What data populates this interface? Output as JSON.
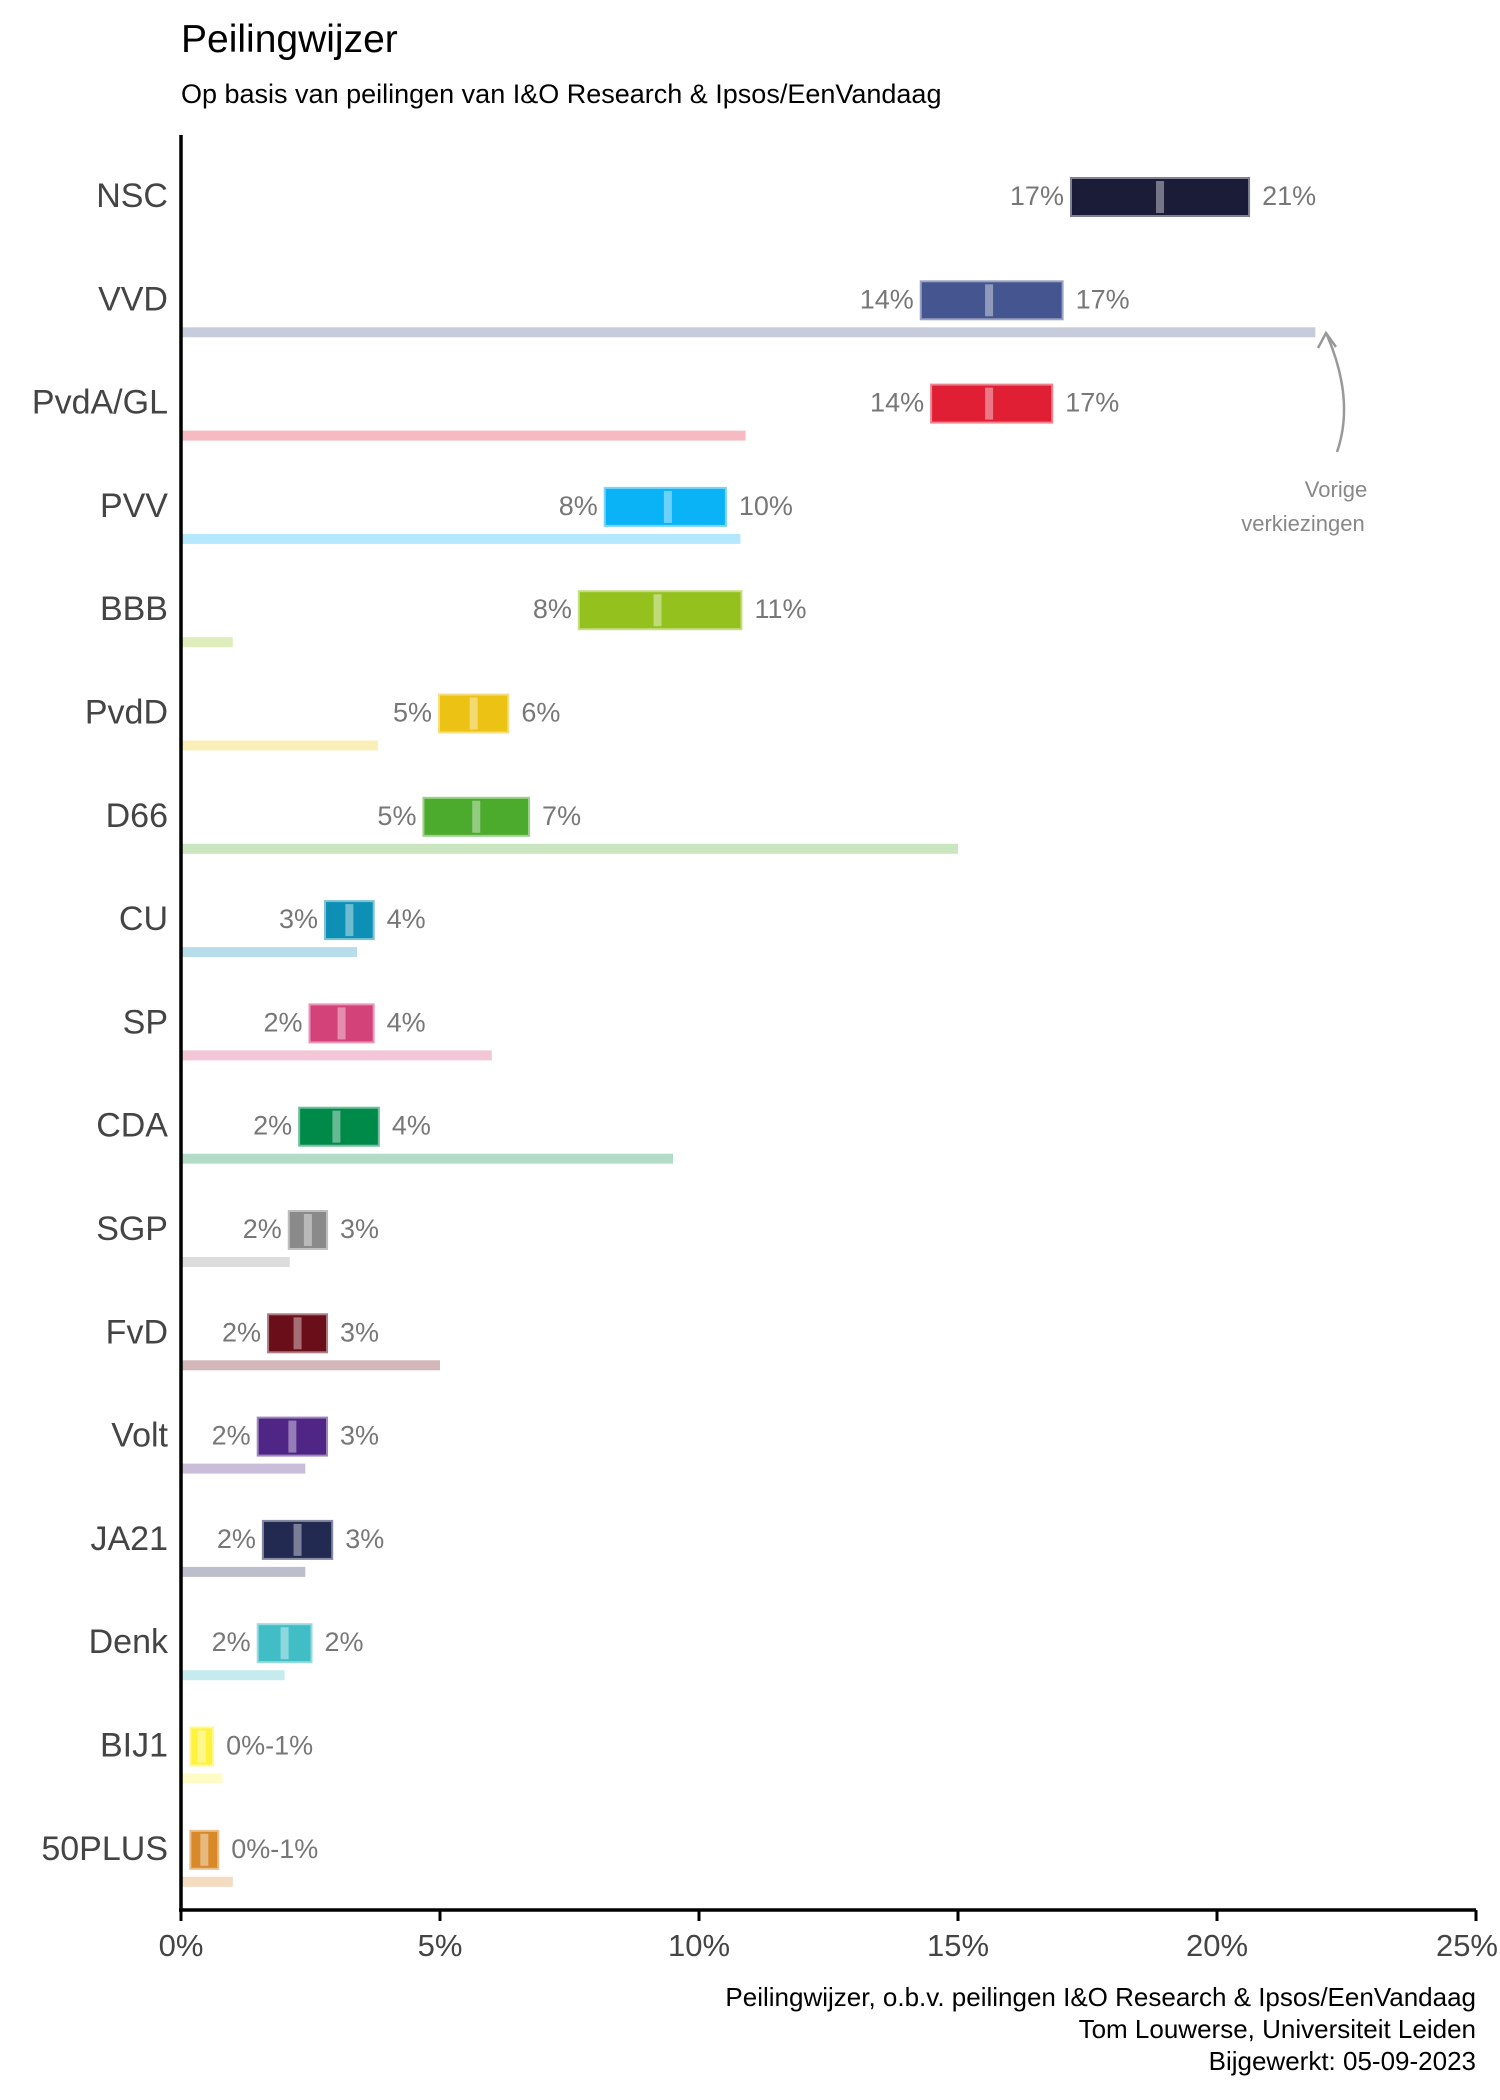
{
  "chart_data": {
    "type": "bar",
    "title": "Peilingwijzer",
    "subtitle": "Op basis van peilingen van I&O Research & Ipsos/EenVandaag",
    "xlim": [
      0,
      25
    ],
    "x_ticks": [
      {
        "value": 0,
        "label": "0%"
      },
      {
        "value": 5,
        "label": "5%"
      },
      {
        "value": 10,
        "label": "10%"
      },
      {
        "value": 15,
        "label": "15%"
      },
      {
        "value": 20,
        "label": "20%"
      },
      {
        "value": 25,
        "label": "25%"
      }
    ],
    "grid": false,
    "parties": [
      {
        "name": "NSC",
        "low": 17.2,
        "high": 20.6,
        "mid": 18.9,
        "previous": 0,
        "color": "#1a1c38",
        "low_label": "17%",
        "high_label": "21%"
      },
      {
        "name": "VVD",
        "low": 14.3,
        "high": 17.0,
        "mid": 15.6,
        "previous": 21.9,
        "color": "#45558f",
        "low_label": "14%",
        "high_label": "17%"
      },
      {
        "name": "PvdA/GL",
        "low": 14.5,
        "high": 16.8,
        "mid": 15.6,
        "previous": 10.9,
        "color": "#e01f34",
        "low_label": "14%",
        "high_label": "17%"
      },
      {
        "name": "PVV",
        "low": 8.2,
        "high": 10.5,
        "mid": 9.4,
        "previous": 10.8,
        "color": "#0ab3f5",
        "low_label": "8%",
        "high_label": "10%"
      },
      {
        "name": "BBB",
        "low": 7.7,
        "high": 10.8,
        "mid": 9.2,
        "previous": 1.0,
        "color": "#94c11e",
        "low_label": "8%",
        "high_label": "11%"
      },
      {
        "name": "PvdD",
        "low": 5.0,
        "high": 6.3,
        "mid": 5.65,
        "previous": 3.8,
        "color": "#ecc314",
        "low_label": "5%",
        "high_label": "6%"
      },
      {
        "name": "D66",
        "low": 4.7,
        "high": 6.7,
        "mid": 5.7,
        "previous": 15.0,
        "color": "#4cab2d",
        "low_label": "5%",
        "high_label": "7%"
      },
      {
        "name": "CU",
        "low": 2.8,
        "high": 3.7,
        "mid": 3.25,
        "previous": 3.4,
        "color": "#0e8fb5",
        "low_label": "3%",
        "high_label": "4%"
      },
      {
        "name": "SP",
        "low": 2.5,
        "high": 3.7,
        "mid": 3.1,
        "previous": 6.0,
        "color": "#d4427a",
        "low_label": "2%",
        "high_label": "4%"
      },
      {
        "name": "CDA",
        "low": 2.3,
        "high": 3.8,
        "mid": 3.0,
        "previous": 9.5,
        "color": "#008a4a",
        "low_label": "2%",
        "high_label": "4%"
      },
      {
        "name": "SGP",
        "low": 2.1,
        "high": 2.8,
        "mid": 2.45,
        "previous": 2.1,
        "color": "#8a8a8a",
        "low_label": "2%",
        "high_label": "3%"
      },
      {
        "name": "FvD",
        "low": 1.7,
        "high": 2.8,
        "mid": 2.25,
        "previous": 5.0,
        "color": "#6a0e1a",
        "low_label": "2%",
        "high_label": "3%"
      },
      {
        "name": "Volt",
        "low": 1.5,
        "high": 2.8,
        "mid": 2.15,
        "previous": 2.4,
        "color": "#4f2585",
        "low_label": "2%",
        "high_label": "3%"
      },
      {
        "name": "JA21",
        "low": 1.6,
        "high": 2.9,
        "mid": 2.25,
        "previous": 2.4,
        "color": "#222a52",
        "low_label": "2%",
        "high_label": "3%"
      },
      {
        "name": "Denk",
        "low": 1.5,
        "high": 2.5,
        "mid": 2.0,
        "previous": 2.0,
        "color": "#41bdc6",
        "low_label": "2%",
        "high_label": "2%"
      },
      {
        "name": "BIJ1",
        "low": 0.2,
        "high": 0.6,
        "mid": 0.4,
        "previous": 0.8,
        "color": "#fff23d",
        "low_label": "",
        "high_label": "0%-1%"
      },
      {
        "name": "50PLUS",
        "low": 0.2,
        "high": 0.7,
        "mid": 0.45,
        "previous": 1.0,
        "color": "#d8892a",
        "low_label": "",
        "high_label": "0%-1%"
      }
    ],
    "annotation": {
      "line1": "Vorige",
      "line2": "verkiezingen"
    },
    "caption": [
      "Peilingwijzer, o.b.v. peilingen I&O Research & Ipsos/EenVandaag",
      "Tom Louwerse, Universiteit Leiden",
      "Bijgewerkt: 05-09-2023"
    ]
  }
}
